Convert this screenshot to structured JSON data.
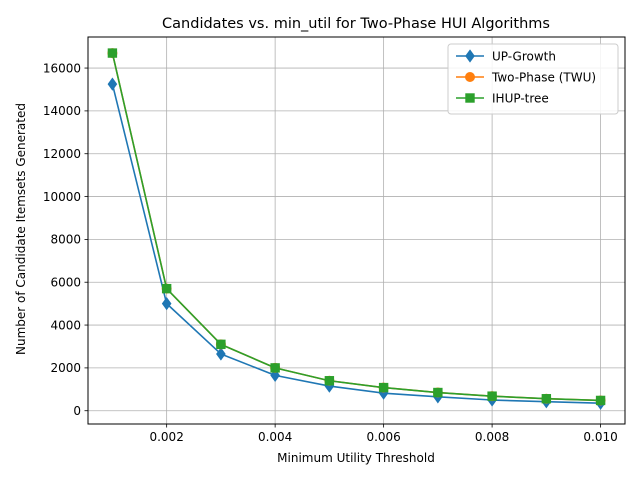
{
  "chart_data": {
    "type": "line",
    "title": "Candidates vs. min_util for Two-Phase HUI Algorithms",
    "xlabel": "Minimum Utility Threshold",
    "ylabel": "Number of Candidate Itemsets Generated",
    "x": [
      0.001,
      0.002,
      0.003,
      0.004,
      0.005,
      0.006,
      0.007,
      0.008,
      0.009,
      0.01
    ],
    "xlim": [
      0.00055,
      0.01045
    ],
    "ylim": [
      -620,
      17450
    ],
    "xticks": [
      0.002,
      0.004,
      0.006,
      0.008,
      0.01
    ],
    "xtick_labels": [
      "0.002",
      "0.004",
      "0.006",
      "0.008",
      "0.010"
    ],
    "yticks": [
      0,
      2000,
      4000,
      6000,
      8000,
      10000,
      12000,
      14000,
      16000
    ],
    "ytick_labels": [
      "0",
      "2000",
      "4000",
      "6000",
      "8000",
      "10000",
      "12000",
      "14000",
      "16000"
    ],
    "grid": true,
    "legend_position": "top-right",
    "series": [
      {
        "name": "UP-Growth",
        "color": "#1f77b4",
        "marker": "diamond",
        "values": [
          15250,
          5000,
          2650,
          1650,
          1150,
          820,
          650,
          500,
          420,
          350
        ]
      },
      {
        "name": "Two-Phase (TWU)",
        "color": "#ff7f0e",
        "marker": "circle",
        "values": [
          16700,
          5700,
          3100,
          2000,
          1400,
          1080,
          850,
          680,
          560,
          480
        ]
      },
      {
        "name": "IHUP-tree",
        "color": "#2ca02c",
        "marker": "square",
        "values": [
          16700,
          5700,
          3100,
          2000,
          1400,
          1080,
          850,
          680,
          560,
          480
        ]
      }
    ]
  }
}
